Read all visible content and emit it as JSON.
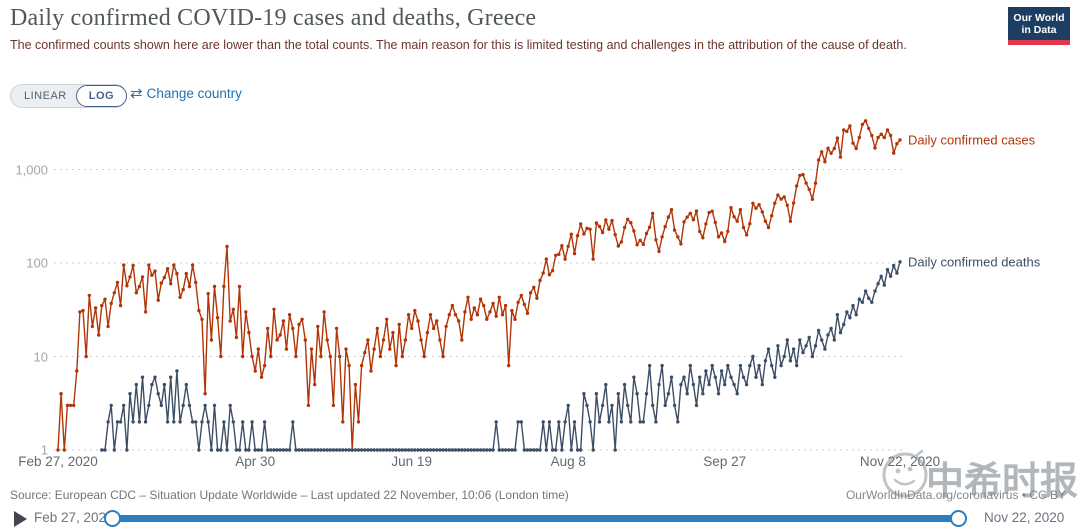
{
  "header": {
    "title": "Daily confirmed COVID-19 cases and deaths, Greece",
    "subtitle": "The confirmed counts shown here are lower than the total counts. The main reason for this is limited testing and challenges in the attribution of the cause of death.",
    "logo": {
      "line1": "Our World",
      "line2": "in Data"
    }
  },
  "controls": {
    "linear_label": "LINEAR",
    "log_label": "LOG",
    "change_country_label": "Change country",
    "change_country_icon": "⇄"
  },
  "chart_data": {
    "type": "line",
    "yscale": "log",
    "title": "Daily confirmed COVID-19 cases and deaths, Greece",
    "xlabel": "",
    "ylabel": "",
    "ylim": [
      1,
      3500
    ],
    "grid": "dotted horizontal",
    "legend_position": "line-end-labels",
    "x_start": "Feb 27, 2020",
    "x_end": "Nov 22, 2020",
    "yticks": [
      {
        "label": "1",
        "value": 1
      },
      {
        "label": "10",
        "value": 10
      },
      {
        "label": "100",
        "value": 100
      },
      {
        "label": "1,000",
        "value": 1000
      }
    ],
    "xticks": [
      {
        "label": "Feb 27, 2020",
        "day": 0
      },
      {
        "label": "Apr 30",
        "day": 63
      },
      {
        "label": "Jun 19",
        "day": 113
      },
      {
        "label": "Aug 8",
        "day": 163
      },
      {
        "label": "Sep 27",
        "day": 213
      },
      {
        "label": "Nov 22, 2020",
        "day": 269
      }
    ],
    "series": [
      {
        "name": "Daily confirmed cases",
        "color": "#b13507",
        "values": [
          1,
          4,
          1,
          3,
          3,
          3,
          7,
          30,
          31,
          10,
          45,
          21,
          33,
          17,
          35,
          41,
          21,
          37,
          48,
          62,
          35,
          95,
          57,
          71,
          94,
          48,
          56,
          71,
          30,
          95,
          74,
          82,
          40,
          61,
          70,
          87,
          60,
          95,
          77,
          43,
          52,
          77,
          56,
          95,
          62,
          31,
          25,
          4,
          47,
          15,
          56,
          26,
          10,
          56,
          150,
          24,
          32,
          16,
          56,
          10,
          30,
          18,
          10,
          7,
          12,
          6,
          8,
          20,
          10,
          32,
          15,
          17,
          24,
          12,
          28,
          20,
          10,
          22,
          25,
          15,
          3,
          12,
          5,
          21,
          10,
          30,
          15,
          10,
          3,
          20,
          10,
          2,
          12,
          8,
          1,
          5,
          2,
          8,
          11,
          15,
          7,
          12,
          20,
          10,
          15,
          25,
          12,
          18,
          8,
          22,
          10,
          15,
          28,
          20,
          31,
          24,
          15,
          10,
          18,
          28,
          20,
          24,
          15,
          10,
          21,
          28,
          35,
          28,
          24,
          15,
          30,
          43,
          25,
          33,
          28,
          41,
          35,
          25,
          30,
          37,
          27,
          43,
          28,
          35,
          8,
          31,
          25,
          38,
          45,
          36,
          29,
          48,
          55,
          42,
          65,
          78,
          110,
          75,
          83,
          121,
          124,
          153,
          110,
          151,
          203,
          126,
          196,
          262,
          204,
          235,
          230,
          110,
          268,
          246,
          212,
          288,
          230,
          284,
          201,
          152,
          168,
          240,
          293,
          270,
          220,
          157,
          175,
          158,
          207,
          241,
          339,
          177,
          133,
          190,
          245,
          310,
          372,
          225,
          190,
          160,
          275,
          310,
          340,
          290,
          359,
          218,
          186,
          262,
          346,
          358,
          272,
          190,
          210,
          170,
          218,
          390,
          312,
          280,
          372,
          240,
          200,
          263,
          435,
          386,
          420,
          352,
          280,
          240,
          320,
          436,
          533,
          482,
          508,
          414,
          280,
          438,
          667,
          865,
          882,
          715,
          612,
          480,
          714,
          1259,
          1547,
          1211,
          1690,
          1490,
          1678,
          2166,
          1358,
          2646,
          2556,
          2917,
          1914,
          1678,
          2198,
          3038,
          3316,
          2752,
          2311,
          1698,
          2198,
          2383,
          2198,
          2646,
          2311,
          1498,
          1890,
          2070
        ]
      },
      {
        "name": "Daily confirmed deaths",
        "color": "#3c4e66",
        "values": [
          0,
          0,
          0,
          0,
          0,
          0,
          0,
          0,
          0,
          0,
          0,
          0,
          0,
          0,
          1,
          0,
          2,
          3,
          1,
          2,
          2,
          3,
          1,
          4,
          2,
          5,
          2,
          6,
          2,
          3,
          5,
          6,
          4,
          3,
          5,
          2,
          6,
          2,
          7,
          2,
          3,
          5,
          3,
          2,
          2,
          1,
          2,
          3,
          2,
          1,
          3,
          0,
          1,
          2,
          1,
          3,
          2,
          0,
          1,
          2,
          1,
          0,
          2,
          1,
          0,
          1,
          2,
          0,
          1,
          1,
          0,
          0,
          1,
          0,
          1,
          2,
          0,
          1,
          0,
          0,
          1,
          0,
          0,
          1,
          0,
          1,
          0,
          0,
          1,
          0,
          0,
          1,
          0,
          0,
          1,
          0,
          0,
          1,
          0,
          0,
          1,
          0,
          0,
          0,
          1,
          0,
          0,
          1,
          0,
          0,
          0,
          1,
          0,
          0,
          1,
          0,
          0,
          0,
          1,
          0,
          0,
          1,
          0,
          0,
          0,
          0,
          0,
          1,
          0,
          0,
          0,
          1,
          0,
          0,
          0,
          0,
          1,
          0,
          0,
          0,
          2,
          0,
          0,
          1,
          0,
          0,
          0,
          2,
          2,
          0,
          1,
          0,
          0,
          1,
          0,
          2,
          0,
          2,
          1,
          0,
          2,
          1,
          2,
          3,
          1,
          2,
          0,
          1,
          4,
          3,
          2,
          0,
          4,
          2,
          3,
          5,
          2,
          3,
          1,
          4,
          2,
          5,
          3,
          2,
          6,
          4,
          2,
          2,
          4,
          8,
          3,
          2,
          5,
          8,
          3,
          4,
          6,
          3,
          2,
          5,
          6,
          4,
          8,
          5,
          3,
          6,
          4,
          7,
          5,
          8,
          6,
          4,
          7,
          5,
          8,
          6,
          5,
          4,
          8,
          6,
          5,
          8,
          10,
          6,
          8,
          5,
          9,
          12,
          8,
          6,
          13,
          8,
          10,
          15,
          9,
          12,
          8,
          15,
          11,
          13,
          16,
          10,
          13,
          19,
          15,
          12,
          17,
          20,
          15,
          28,
          18,
          22,
          30,
          26,
          35,
          28,
          41,
          38,
          50,
          42,
          38,
          50,
          60,
          72,
          58,
          85,
          72,
          94,
          78,
          103
        ]
      }
    ]
  },
  "footer": {
    "source": "Source: European CDC – Situation Update Worldwide – Last updated 22 November, 10:06 (London time)",
    "credit": "OurWorldInData.org/coronavirus • CC BY"
  },
  "timeline": {
    "start_label": "Feb 27, 2020",
    "end_label": "Nov 22, 2020"
  },
  "watermark": {
    "text": "中希时报"
  },
  "colors": {
    "cases": "#b13507",
    "deaths": "#3c4e66",
    "slider_blue": "#2e7dc2",
    "link_blue": "#2271b1",
    "logo_navy": "#1d3d63",
    "logo_red": "#e0394b"
  }
}
